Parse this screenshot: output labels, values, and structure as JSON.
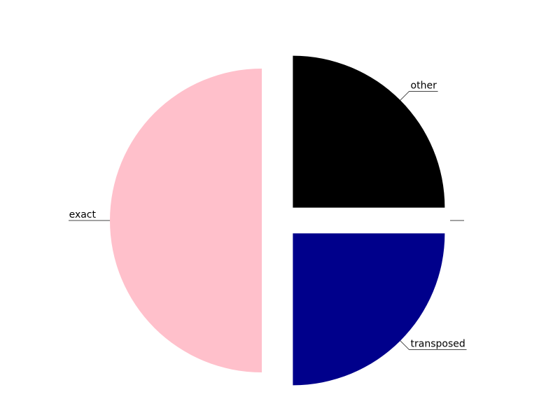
{
  "chart_data": {
    "type": "pie",
    "title": "",
    "legend": "none",
    "labels_style": "outside-with-leader-lines",
    "exploded": true,
    "slices": [
      {
        "label": "other",
        "value": 25,
        "color": "#000000"
      },
      {
        "label": "",
        "value": 0,
        "color": "#000000"
      },
      {
        "label": "transposed",
        "value": 25,
        "color": "#00008b"
      },
      {
        "label": "exact",
        "value": 50,
        "color": "#ffc0cb"
      }
    ]
  }
}
